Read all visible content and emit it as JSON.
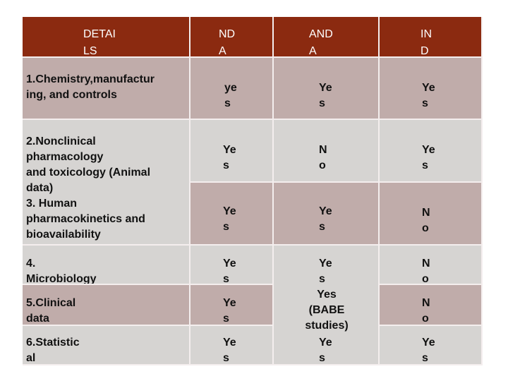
{
  "table": {
    "headers": [
      "DETAI\nLS",
      "ND\nA",
      "AND\nA",
      "IN\nD"
    ],
    "rows": [
      {
        "label": "1.Chemistry,manufactur\ning,  and controls",
        "nda": "ye\ns",
        "anda": "Ye\ns",
        "ind": "Ye\ns"
      },
      {
        "label": "2.Nonclinical\npharmacology\nand toxicology (Animal\ndata)",
        "nda": "Ye\ns",
        "anda": "N\no",
        "ind": "Ye\ns"
      },
      {
        "label": "3. Human\npharmacokinetics  and\nbioavailability",
        "nda": "Ye\ns",
        "anda": "Ye\ns",
        "ind": "N\no"
      },
      {
        "label": "4.\nMicrobiology",
        "nda": "Ye\ns",
        "anda": "Ye\ns",
        "ind": "N\no"
      },
      {
        "label": "5.Clinical\ndata",
        "nda": "Ye\ns",
        "anda": "Yes\n(BABE\nstudies)",
        "ind": "N\no"
      },
      {
        "label": "6.Statistic\nal",
        "nda": "Ye\ns",
        "anda": "Ye\ns",
        "ind": "Ye\ns"
      }
    ]
  },
  "colors": {
    "header": "#8b2a10",
    "row_pink": "#c0acaa",
    "row_grey": "#d6d4d2"
  }
}
